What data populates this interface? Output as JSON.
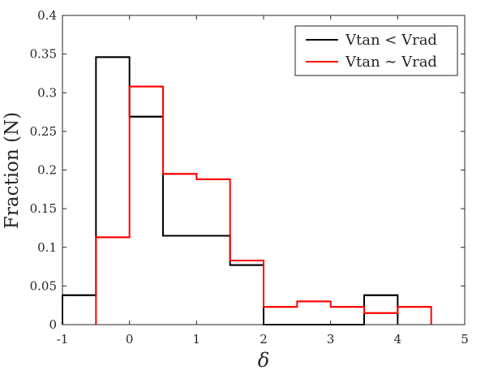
{
  "chart_data": {
    "type": "step",
    "xlabel": "δ",
    "ylabel": "Fraction (N)",
    "xlim": [
      -1,
      5
    ],
    "ylim": [
      0,
      0.4
    ],
    "xticks": [
      -1,
      0,
      1,
      2,
      3,
      4,
      5
    ],
    "yticks": [
      0,
      0.05,
      0.1,
      0.15,
      0.2,
      0.25,
      0.3,
      0.35,
      0.4
    ],
    "xtick_labels": [
      "-1",
      "0",
      "1",
      "2",
      "3",
      "4",
      "5"
    ],
    "ytick_labels": [
      "0",
      "0.05",
      "0.1",
      "0.15",
      "0.2",
      "0.25",
      "0.3",
      "0.35",
      "0.4"
    ],
    "grid": false,
    "legend_placement": "top-right",
    "series": [
      {
        "name": "Vtan < Vrad",
        "legend_parts": [
          "Vtan",
          "<",
          "Vrad"
        ],
        "color": "#000000",
        "bin_edges": [
          -1,
          -0.5,
          0,
          0.5,
          1,
          1.5,
          2,
          2.5,
          3,
          3.5,
          4
        ],
        "values": [
          0.038,
          0.346,
          0.269,
          0.115,
          0.115,
          0.077,
          0,
          0,
          0,
          0.038
        ]
      },
      {
        "name": "Vtan ∼ Vrad",
        "legend_parts": [
          "Vtan",
          "∼",
          "Vrad"
        ],
        "color": "#ff0000",
        "bin_edges": [
          -0.5,
          0,
          0.5,
          1,
          1.5,
          2,
          2.5,
          3,
          3.5,
          4,
          4.5
        ],
        "values": [
          0.113,
          0.308,
          0.195,
          0.188,
          0.083,
          0.023,
          0.03,
          0.023,
          0.015,
          0.023
        ]
      }
    ]
  }
}
